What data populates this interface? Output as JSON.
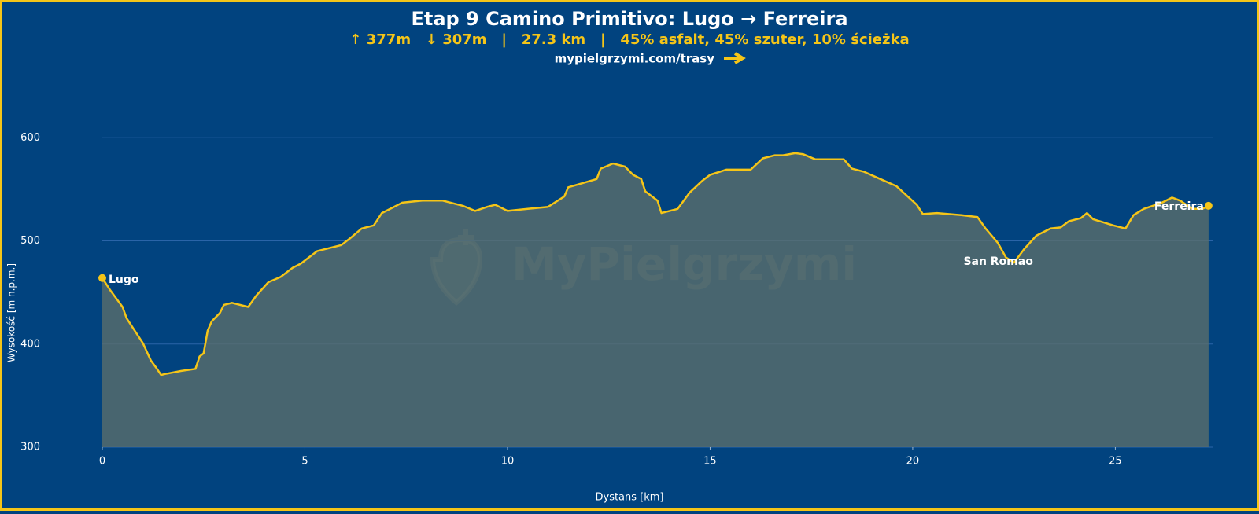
{
  "chart_data": {
    "type": "area",
    "title": "Etap 9 Camino Primitivo: Lugo → Ferreira",
    "subtitle": "↑ 377m   ↓ 307m   |   27.3 km   |   45% asfalt, 45% szuter, 10% ścieżka",
    "link": "mypielgrzymi.com/trasy",
    "watermark": "MyPielgrzymi",
    "x_label": "Dystans [km]",
    "y_label": "Wysokość [m n.p.m.]",
    "line_color": "#f5c518",
    "fill_color": "#5a6e6c",
    "grid": true,
    "xlim": [
      0,
      27.4
    ],
    "ylim": [
      300,
      620
    ],
    "xticks": [
      0,
      5,
      10,
      15,
      20,
      25
    ],
    "yticks": [
      300,
      400,
      500,
      600
    ],
    "x": [
      0,
      0.2,
      0.5,
      0.6,
      0.8,
      1.0,
      1.2,
      1.35,
      1.45,
      1.55,
      1.95,
      2.3,
      2.4,
      2.5,
      2.6,
      2.7,
      2.9,
      3.0,
      3.2,
      3.6,
      3.8,
      4.1,
      4.4,
      4.7,
      4.9,
      5.1,
      5.3,
      5.9,
      6.1,
      6.4,
      6.7,
      6.9,
      7.2,
      7.4,
      7.9,
      8.4,
      8.9,
      9.2,
      9.5,
      9.7,
      10.0,
      10.5,
      11.0,
      11.4,
      11.5,
      12.2,
      12.3,
      12.6,
      12.9,
      13.1,
      13.3,
      13.4,
      13.7,
      13.8,
      14.2,
      14.5,
      14.8,
      15.0,
      15.4,
      16.0,
      16.3,
      16.6,
      16.8,
      17.1,
      17.3,
      17.6,
      18.3,
      18.5,
      18.8,
      19.2,
      19.6,
      20.1,
      20.25,
      20.6,
      21.2,
      21.6,
      21.8,
      22.1,
      22.3,
      22.5,
      22.75,
      23.05,
      23.4,
      23.65,
      23.85,
      24.15,
      24.3,
      24.45,
      24.95,
      25.25,
      25.45,
      25.7,
      26.15,
      26.4,
      26.6,
      26.9,
      27.15,
      27.3
    ],
    "values": [
      464,
      452,
      436,
      425,
      413,
      401,
      384,
      376,
      370,
      371,
      374,
      376,
      388,
      391,
      413,
      422,
      430,
      438,
      440,
      436,
      447,
      460,
      465,
      474,
      478,
      484,
      490,
      496,
      502,
      512,
      515,
      527,
      533,
      537,
      539,
      539,
      534,
      529,
      533,
      535,
      529,
      531,
      533,
      543,
      552,
      560,
      570,
      575,
      572,
      564,
      560,
      548,
      539,
      527,
      531,
      547,
      558,
      564,
      569,
      569,
      580,
      583,
      583,
      585,
      584,
      579,
      579,
      570,
      567,
      560,
      553,
      535,
      526,
      527,
      525,
      523,
      512,
      498,
      484,
      479,
      492,
      505,
      512,
      513,
      519,
      522,
      527,
      521,
      515,
      512,
      525,
      531,
      537,
      542,
      539,
      531,
      531,
      534
    ],
    "annotations": [
      {
        "text": "Lugo",
        "x": 0,
        "y": 464
      },
      {
        "text": "San Romao",
        "x": 22.5,
        "y": 479
      },
      {
        "text": "Ferreira",
        "x": 27.3,
        "y": 534
      }
    ]
  }
}
